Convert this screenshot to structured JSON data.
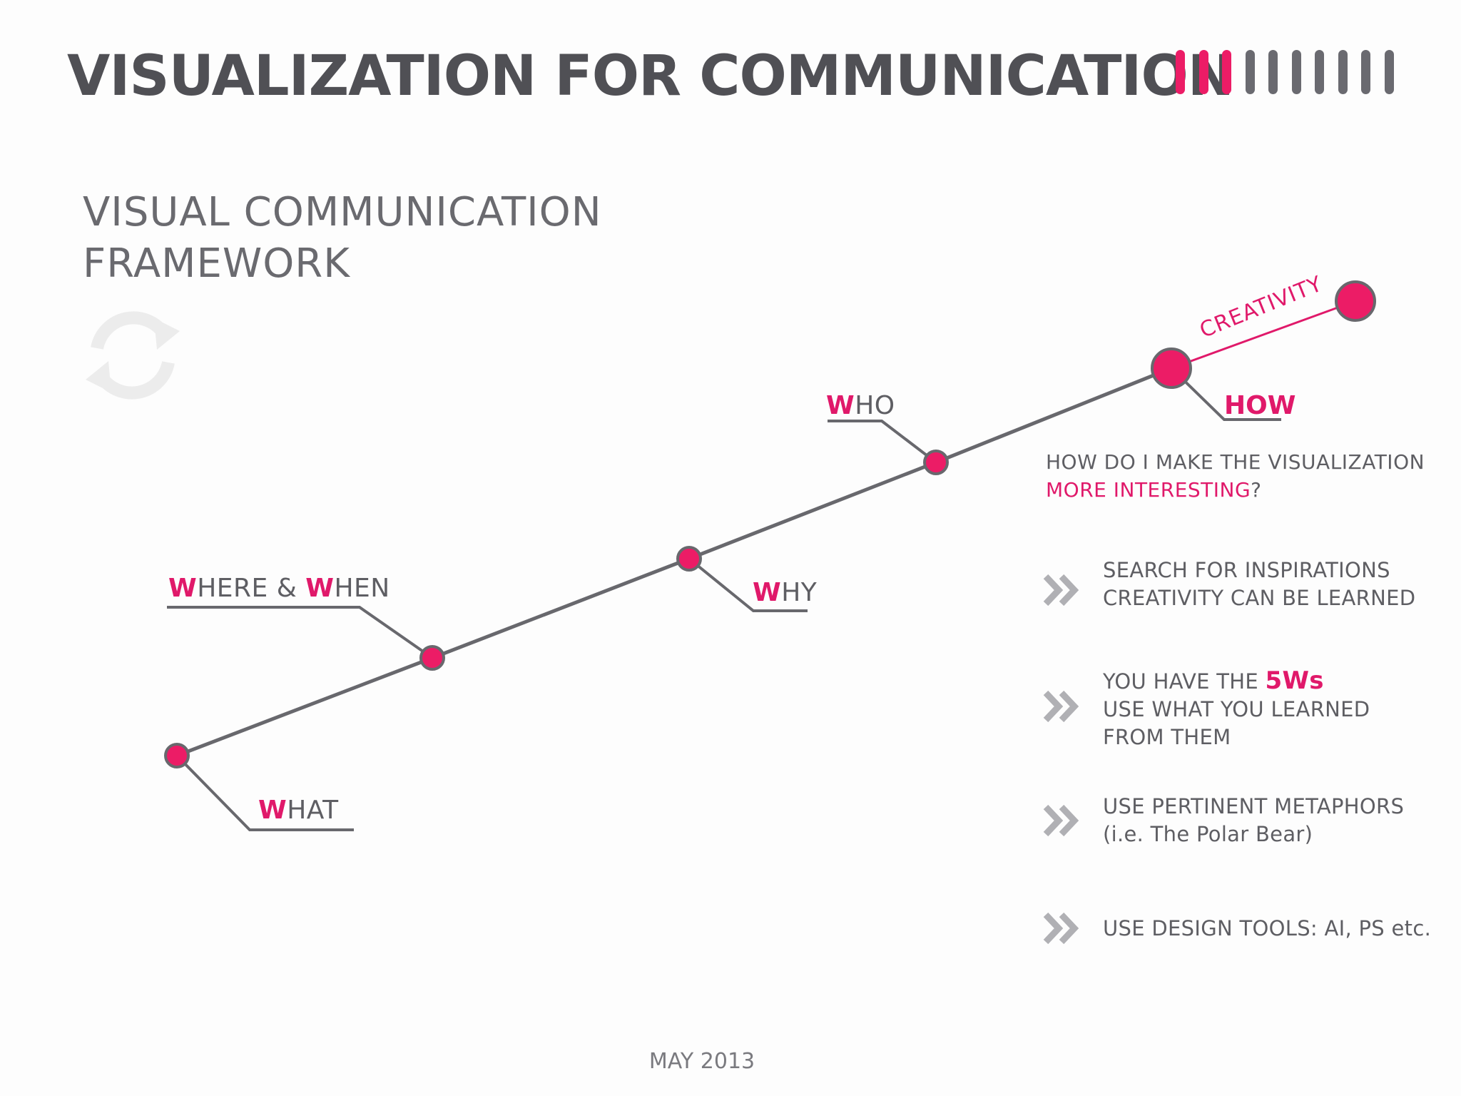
{
  "header": {
    "title": "VISUALIZATION FOR COMMUNICATION",
    "progress": {
      "total": 10,
      "active": 3,
      "active_color": "#ec1c66",
      "inactive_color": "#6a6a70"
    }
  },
  "subtitle": {
    "line1": "VISUAL COMMUNICATION",
    "line2": "FRAMEWORK"
  },
  "cycle_icon": "refresh-icon",
  "nodes": {
    "what": {
      "w": "W",
      "rest": "HAT"
    },
    "where_when": {
      "w1": "W",
      "rest1": "HERE & ",
      "w2": "W",
      "rest2": "HEN"
    },
    "why": {
      "w": "W",
      "rest": "HY"
    },
    "who": {
      "w": "W",
      "rest": "HO"
    },
    "how": {
      "label": "HOW"
    },
    "creativity": {
      "label": "CREATIVITY"
    }
  },
  "question": {
    "line1": "HOW DO I MAKE THE VISUALIZATION",
    "line2_highlight": "MORE INTERESTING",
    "line2_end": "?"
  },
  "tips": [
    {
      "icon": "chevron-double-right-icon",
      "line1": "SEARCH FOR INSPIRATIONS",
      "line2": "CREATIVITY CAN BE LEARNED"
    },
    {
      "icon": "chevron-double-right-icon",
      "line1_prefix": "YOU HAVE THE ",
      "line1_highlight": "5Ws",
      "line2": "USE WHAT YOU LEARNED",
      "line3": "FROM THEM"
    },
    {
      "icon": "chevron-double-right-icon",
      "line1": "USE PERTINENT METAPHORS",
      "line2": "(i.e. The Polar Bear)"
    },
    {
      "icon": "chevron-double-right-icon",
      "line1": "USE DESIGN TOOLS: AI, PS etc."
    }
  ],
  "footer": {
    "date": "MAY 2013"
  },
  "colors": {
    "accent": "#e0196a",
    "line": "#68686d",
    "text": "#5e5e63"
  }
}
